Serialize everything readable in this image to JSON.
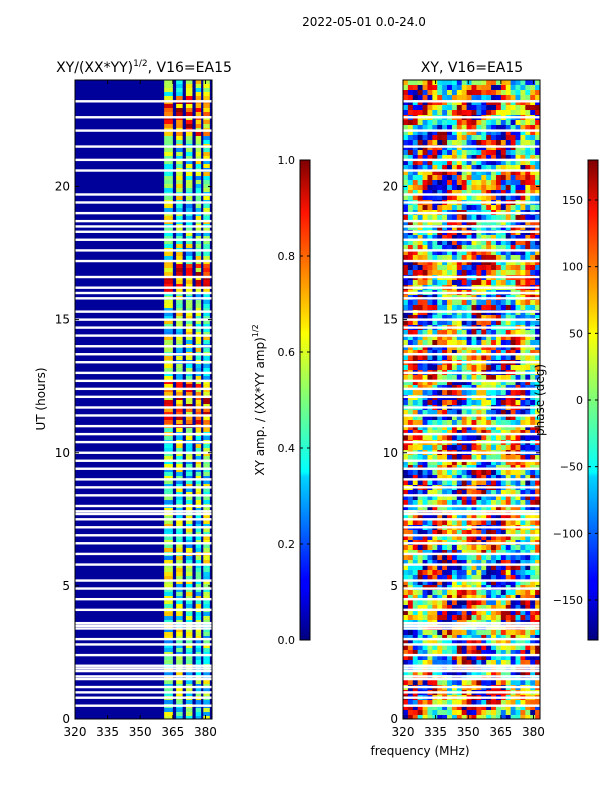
{
  "figure": {
    "suptitle": "2022-05-01 0.0-24.0"
  },
  "chart_data": [
    {
      "type": "heatmap",
      "title_main": "XY/(XX*YY)",
      "title_exp": "1/2",
      "title_rest": ", V16=EA15",
      "xlabel": "",
      "ylabel": "UT (hours)",
      "xlim": [
        320,
        383
      ],
      "ylim": [
        0,
        24
      ],
      "xticks": [
        320,
        335,
        350,
        365,
        380
      ],
      "yticks": [
        0,
        5,
        10,
        15,
        20
      ],
      "colorbar": {
        "label_main": "XY amp. / (XX*YY amp)",
        "label_exp": "1/2",
        "range": [
          0.0,
          1.0
        ],
        "ticks": [
          {
            "value": 0.0,
            "label": "0.0"
          },
          {
            "value": 0.2,
            "label": "0.2"
          },
          {
            "value": 0.4,
            "label": "0.4"
          },
          {
            "value": 0.6,
            "label": "0.6"
          },
          {
            "value": 0.8,
            "label": "0.8"
          },
          {
            "value": 1.0,
            "label": "1.0"
          }
        ]
      },
      "blank_rows_ut": [
        23.2,
        22.6,
        22.1,
        21.5,
        21.0,
        20.6,
        19.7,
        19.4,
        19.0,
        18.7,
        18.5,
        18.3,
        18.0,
        17.6,
        17.2,
        16.6,
        16.2,
        16.0,
        15.8,
        15.3,
        15.0,
        14.7,
        14.4,
        14.0,
        13.7,
        13.4,
        13.0,
        12.7,
        12.4,
        12.1,
        11.7,
        11.4,
        11.0,
        10.7,
        10.4,
        10.0,
        9.7,
        9.4,
        9.0,
        8.7,
        8.4,
        8.0,
        7.8,
        7.7,
        7.5,
        7.2,
        6.9,
        6.6,
        6.2,
        5.8,
        5.2,
        4.9,
        4.5,
        4.1,
        3.6,
        3.5,
        3.4,
        3.0,
        2.8,
        2.4,
        2.0,
        1.9,
        1.8,
        1.6,
        1.5,
        1.2,
        1.0,
        0.8,
        0.5
      ]
    },
    {
      "type": "heatmap",
      "title": "XY, V16=EA15",
      "xlabel": "frequency (MHz)",
      "ylabel": "",
      "xlim": [
        320,
        383
      ],
      "ylim": [
        0,
        24
      ],
      "xticks": [
        320,
        335,
        350,
        365,
        380
      ],
      "yticks": [
        0,
        5,
        10,
        15,
        20
      ],
      "colorbar": {
        "label": "phase (deg)",
        "range": [
          -180,
          180
        ],
        "ticks": [
          {
            "value": -150,
            "label": "−150"
          },
          {
            "value": -100,
            "label": "−100"
          },
          {
            "value": -50,
            "label": "−50"
          },
          {
            "value": 0,
            "label": "0"
          },
          {
            "value": 50,
            "label": "50"
          },
          {
            "value": 100,
            "label": "100"
          },
          {
            "value": 150,
            "label": "150"
          }
        ]
      },
      "blank_rows_ut": [
        23.2,
        22.6,
        22.1,
        21.5,
        21.0,
        20.6,
        19.7,
        19.4,
        19.0,
        18.7,
        18.5,
        18.3,
        18.0,
        17.6,
        17.2,
        16.6,
        16.2,
        16.0,
        15.8,
        15.3,
        15.0,
        14.7,
        14.4,
        14.0,
        13.7,
        13.4,
        13.0,
        12.7,
        12.4,
        12.1,
        11.7,
        11.4,
        11.0,
        10.7,
        10.4,
        10.0,
        9.7,
        9.4,
        9.0,
        8.7,
        8.4,
        8.0,
        7.8,
        7.7,
        7.5,
        7.2,
        6.9,
        6.6,
        6.2,
        5.8,
        5.2,
        4.9,
        4.5,
        4.1,
        3.6,
        3.5,
        3.4,
        3.0,
        2.8,
        2.4,
        2.0,
        1.9,
        1.8,
        1.6,
        1.5,
        1.2,
        1.0,
        0.8,
        0.5
      ]
    }
  ]
}
